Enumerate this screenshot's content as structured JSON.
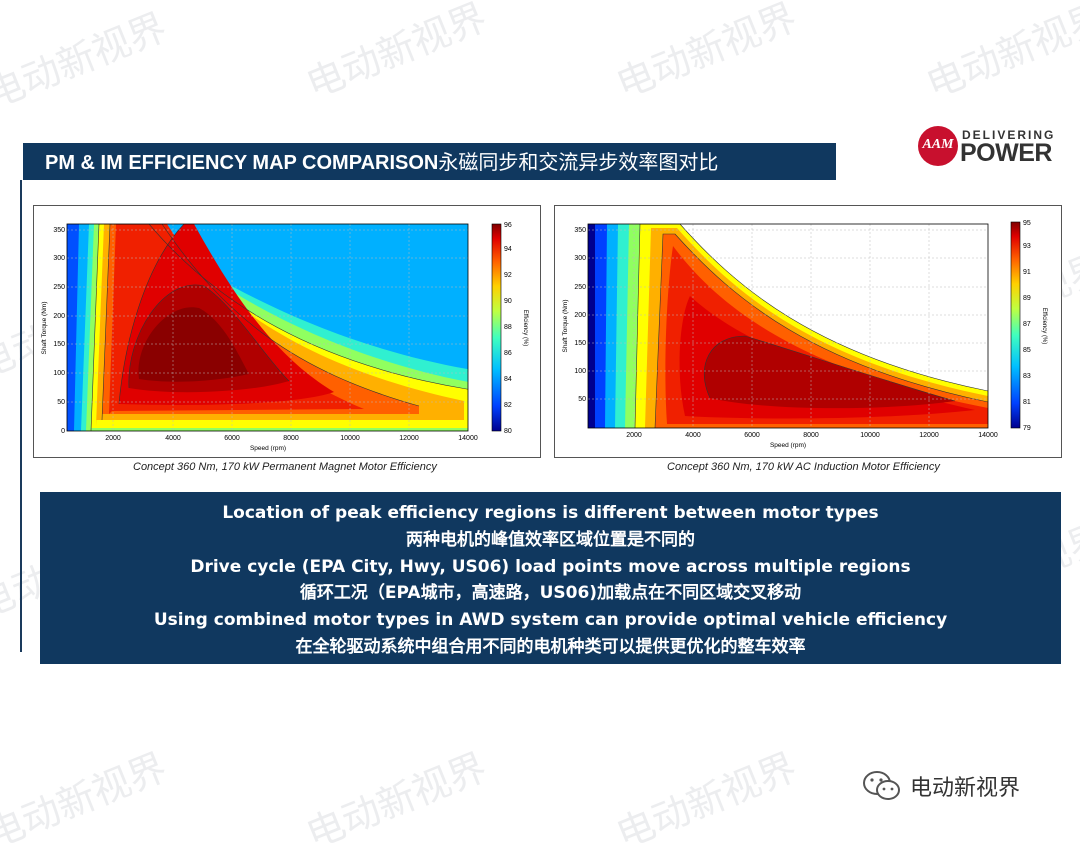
{
  "watermark_text": "电动新视界",
  "slide": {
    "title_en": "PM & IM EFFICIENCY MAP COMPARISON",
    "title_cn": "永磁同步和交流异步效率图对比"
  },
  "logo": {
    "line1": "DELIVERING",
    "line2": "POWER",
    "mark": "AAM"
  },
  "charts": [
    {
      "caption": "Concept 360 Nm, 170 kW Permanent Magnet Motor Efficiency",
      "xlabel": "Speed (rpm)",
      "ylabel": "Shaft Torque (Nm)",
      "colorbar_label": "Efficiency (%)",
      "xticks": [
        "2000",
        "4000",
        "6000",
        "8000",
        "10000",
        "12000",
        "14000"
      ],
      "yticks": [
        "0",
        "50",
        "100",
        "150",
        "200",
        "250",
        "300",
        "350"
      ],
      "cticks": [
        "80",
        "82",
        "84",
        "86",
        "88",
        "90",
        "92",
        "94",
        "96"
      ]
    },
    {
      "caption": "Concept 360 Nm, 170 kW AC Induction Motor Efficiency",
      "xlabel": "Speed (rpm)",
      "ylabel": "Shaft Torque (Nm)",
      "colorbar_label": "Efficiency (%)",
      "xticks": [
        "2000",
        "4000",
        "6000",
        "8000",
        "10000",
        "12000",
        "14000"
      ],
      "yticks": [
        "50",
        "100",
        "150",
        "200",
        "250",
        "300",
        "350"
      ],
      "cticks": [
        "79",
        "81",
        "83",
        "85",
        "87",
        "89",
        "91",
        "93",
        "95"
      ]
    }
  ],
  "chart_data": [
    {
      "type": "heatmap",
      "title": "",
      "xlabel": "Speed (rpm)",
      "ylabel": "Shaft Torque (Nm)",
      "xlim": [
        500,
        14000
      ],
      "ylim": [
        0,
        360
      ],
      "colorbar": {
        "label": "Efficiency (%)",
        "range": [
          80,
          96
        ]
      },
      "peak_region": {
        "speed_range": [
          3500,
          7000
        ],
        "torque_range": [
          80,
          250
        ],
        "efficiency": 96
      }
    },
    {
      "type": "heatmap",
      "title": "",
      "xlabel": "Speed (rpm)",
      "ylabel": "Shaft Torque (Nm)",
      "xlim": [
        500,
        14000
      ],
      "ylim": [
        0,
        360
      ],
      "colorbar": {
        "label": "Efficiency (%)",
        "range": [
          79,
          95
        ]
      },
      "peak_region": {
        "speed_range": [
          5000,
          12000
        ],
        "torque_range": [
          30,
          160
        ],
        "efficiency": 95
      }
    }
  ],
  "notes": [
    "Location of peak efficiency regions is different between motor types",
    "两种电机的峰值效率区域位置是不同的",
    "Drive cycle (EPA City, Hwy, US06) load points move across multiple regions",
    "循环工况（EPA城市，高速路，US06)加载点在不同区域交叉移动",
    "Using combined motor types in AWD system can provide optimal vehicle efficiency",
    "在全轮驱动系统中组合用不同的电机种类可以提供更优化的整车效率"
  ],
  "footer": {
    "label": "电动新视界",
    "icon": "wechat-icon"
  }
}
